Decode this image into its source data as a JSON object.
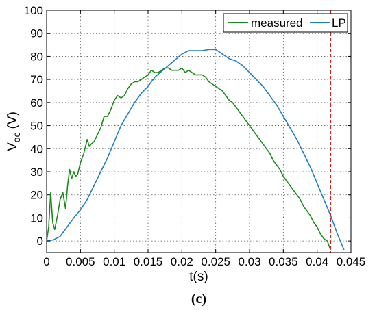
{
  "caption": "(c)",
  "chart_data": {
    "type": "line",
    "xlabel": "t(s)",
    "ylabel_main": "V",
    "ylabel_sub": "oc",
    "ylabel_unit": "(V)",
    "xlim": [
      0,
      0.045
    ],
    "ylim": [
      -5,
      100
    ],
    "x_ticks": [
      0,
      0.005,
      0.01,
      0.015,
      0.02,
      0.025,
      0.03,
      0.035,
      0.04,
      0.045
    ],
    "x_tick_labels": [
      "0",
      "0.005",
      "0.01",
      "0.015",
      "0.02",
      "0.025",
      "0.03",
      "0.035",
      "0.04",
      "0.045"
    ],
    "y_ticks": [
      0,
      10,
      20,
      30,
      40,
      50,
      60,
      70,
      80,
      90,
      100
    ],
    "y_tick_labels": [
      "0",
      "10",
      "20",
      "30",
      "40",
      "50",
      "60",
      "70",
      "80",
      "90",
      "100"
    ],
    "grid": true,
    "legend_position": "top-right",
    "series": [
      {
        "name": "measured",
        "color": "#1a8a1a",
        "x": [
          0,
          0.0003,
          0.0006,
          0.0009,
          0.0012,
          0.0016,
          0.002,
          0.0024,
          0.0028,
          0.0031,
          0.0034,
          0.0037,
          0.004,
          0.0043,
          0.0046,
          0.005,
          0.0055,
          0.006,
          0.0063,
          0.0066,
          0.007,
          0.0075,
          0.008,
          0.0085,
          0.009,
          0.0095,
          0.01,
          0.0105,
          0.011,
          0.0115,
          0.012,
          0.0125,
          0.013,
          0.0135,
          0.014,
          0.0145,
          0.015,
          0.0155,
          0.016,
          0.0165,
          0.017,
          0.0175,
          0.018,
          0.0185,
          0.019,
          0.0195,
          0.02,
          0.0205,
          0.021,
          0.0215,
          0.022,
          0.0225,
          0.023,
          0.0235,
          0.024,
          0.0245,
          0.025,
          0.0255,
          0.026,
          0.0265,
          0.027,
          0.0275,
          0.028,
          0.0285,
          0.029,
          0.0295,
          0.03,
          0.0305,
          0.031,
          0.0315,
          0.032,
          0.0325,
          0.033,
          0.0335,
          0.034,
          0.0345,
          0.035,
          0.0355,
          0.036,
          0.0365,
          0.037,
          0.0375,
          0.038,
          0.0385,
          0.039,
          0.0395,
          0.04,
          0.0405,
          0.041,
          0.0415,
          0.042
        ],
        "values": [
          0,
          6,
          21,
          8,
          5,
          11,
          18,
          21,
          14,
          24,
          31,
          27,
          30,
          28,
          29,
          34,
          38,
          44,
          41,
          42,
          43,
          46,
          49,
          54,
          54,
          57,
          61,
          63,
          62,
          63,
          66,
          68,
          69,
          69,
          70,
          71,
          72,
          74,
          73,
          73,
          74,
          75,
          75,
          74,
          74,
          74,
          75,
          73,
          74,
          73,
          72,
          72,
          72,
          71,
          69,
          68,
          67,
          66,
          65,
          63,
          61,
          60,
          58,
          56,
          54,
          52,
          50,
          48,
          46,
          44,
          42,
          40,
          38,
          35,
          33,
          31,
          28,
          26,
          24,
          22,
          20,
          18,
          15,
          13,
          11,
          8,
          6,
          3,
          1,
          0,
          -4
        ],
        "note": ""
      },
      {
        "name": "LP",
        "color": "#1f7fc8",
        "x": [
          0,
          0.001,
          0.002,
          0.003,
          0.004,
          0.005,
          0.006,
          0.007,
          0.008,
          0.009,
          0.01,
          0.011,
          0.012,
          0.013,
          0.014,
          0.015,
          0.016,
          0.017,
          0.018,
          0.019,
          0.02,
          0.021,
          0.022,
          0.023,
          0.024,
          0.025,
          0.026,
          0.027,
          0.028,
          0.029,
          0.03,
          0.031,
          0.032,
          0.033,
          0.034,
          0.035,
          0.036,
          0.037,
          0.038,
          0.039,
          0.04,
          0.041,
          0.042,
          0.043,
          0.044
        ],
        "values": [
          0,
          0.5,
          2,
          6,
          10,
          13.5,
          18,
          24,
          30,
          36,
          43,
          50,
          55,
          60,
          64,
          67,
          71,
          73.5,
          76,
          78.5,
          81,
          82.5,
          82.5,
          82.5,
          83,
          83,
          81,
          79,
          78,
          76,
          73,
          70,
          67,
          63,
          59,
          54,
          49,
          44,
          38,
          32,
          25,
          18,
          11,
          3,
          -4
        ]
      }
    ],
    "reference_line": {
      "x": 0.042,
      "color": "#d42020",
      "style": "dashed"
    }
  }
}
